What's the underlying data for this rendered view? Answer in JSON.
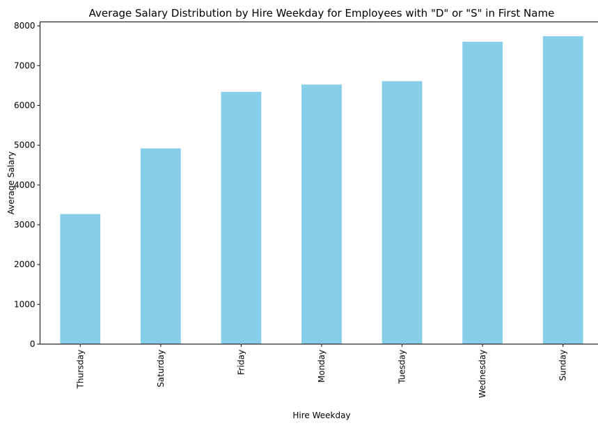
{
  "chart_data": {
    "type": "bar",
    "title": "Average Salary Distribution by Hire Weekday for Employees with \"D\" or \"S\" in First Name",
    "xlabel": "Hire Weekday",
    "ylabel": "Average Salary",
    "categories": [
      "Thursday",
      "Saturday",
      "Friday",
      "Monday",
      "Tuesday",
      "Wednesday",
      "Sunday"
    ],
    "values": [
      3270,
      4920,
      6340,
      6525,
      6610,
      7600,
      7740
    ],
    "ylim": [
      0,
      8100
    ],
    "yticks": [
      0,
      1000,
      2000,
      3000,
      4000,
      5000,
      6000,
      7000,
      8000
    ],
    "bar_color": "#87CEEB",
    "grid": false,
    "legend": "none"
  }
}
